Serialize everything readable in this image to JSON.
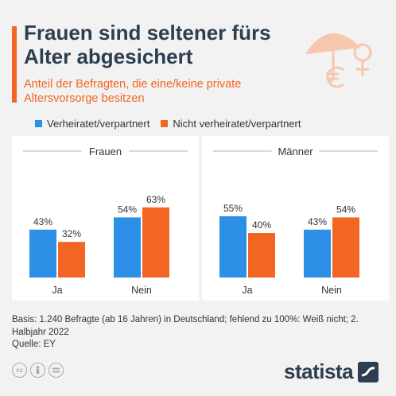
{
  "header": {
    "title": "Frauen sind seltener fürs Alter abgesichert",
    "subtitle": "Anteil der Befragten, die eine/keine private Altersvorsorge besitzen"
  },
  "legend": [
    {
      "label": "Verheiratet/verpartnert",
      "color": "#2d8fe6"
    },
    {
      "label": "Nicht verheiratet/verpartnert",
      "color": "#f26522"
    }
  ],
  "footer": {
    "basis": "Basis: 1.240 Befragte (ab 16 Jahren) in Deutschland; fehlend zu 100%: Weiß nicht; 2. Halbjahr 2022",
    "source": "Quelle: EY",
    "brand": "statista"
  },
  "icons": [
    "umbrella-euro-icon",
    "female-symbol-icon",
    "cc-icon",
    "person-icon",
    "equals-icon",
    "statista-logo-icon"
  ],
  "chart_data": [
    {
      "type": "bar",
      "title": "Frauen",
      "categories": [
        "Ja",
        "Nein"
      ],
      "series": [
        {
          "name": "Verheiratet/verpartnert",
          "values": [
            43,
            54
          ],
          "labels": [
            "43%",
            "54%"
          ],
          "color": "#2d8fe6"
        },
        {
          "name": "Nicht verheiratet/verpartnert",
          "values": [
            32,
            63
          ],
          "labels": [
            "32%",
            "63%"
          ],
          "color": "#f26522"
        }
      ],
      "ylim": [
        0,
        100
      ]
    },
    {
      "type": "bar",
      "title": "Männer",
      "categories": [
        "Ja",
        "Nein"
      ],
      "series": [
        {
          "name": "Verheiratet/verpartnert",
          "values": [
            55,
            43
          ],
          "labels": [
            "55%",
            "43%"
          ],
          "color": "#2d8fe6"
        },
        {
          "name": "Nicht verheiratet/verpartnert",
          "values": [
            40,
            54
          ],
          "labels": [
            "40%",
            "54%"
          ],
          "color": "#f26522"
        }
      ],
      "ylim": [
        0,
        100
      ]
    }
  ]
}
